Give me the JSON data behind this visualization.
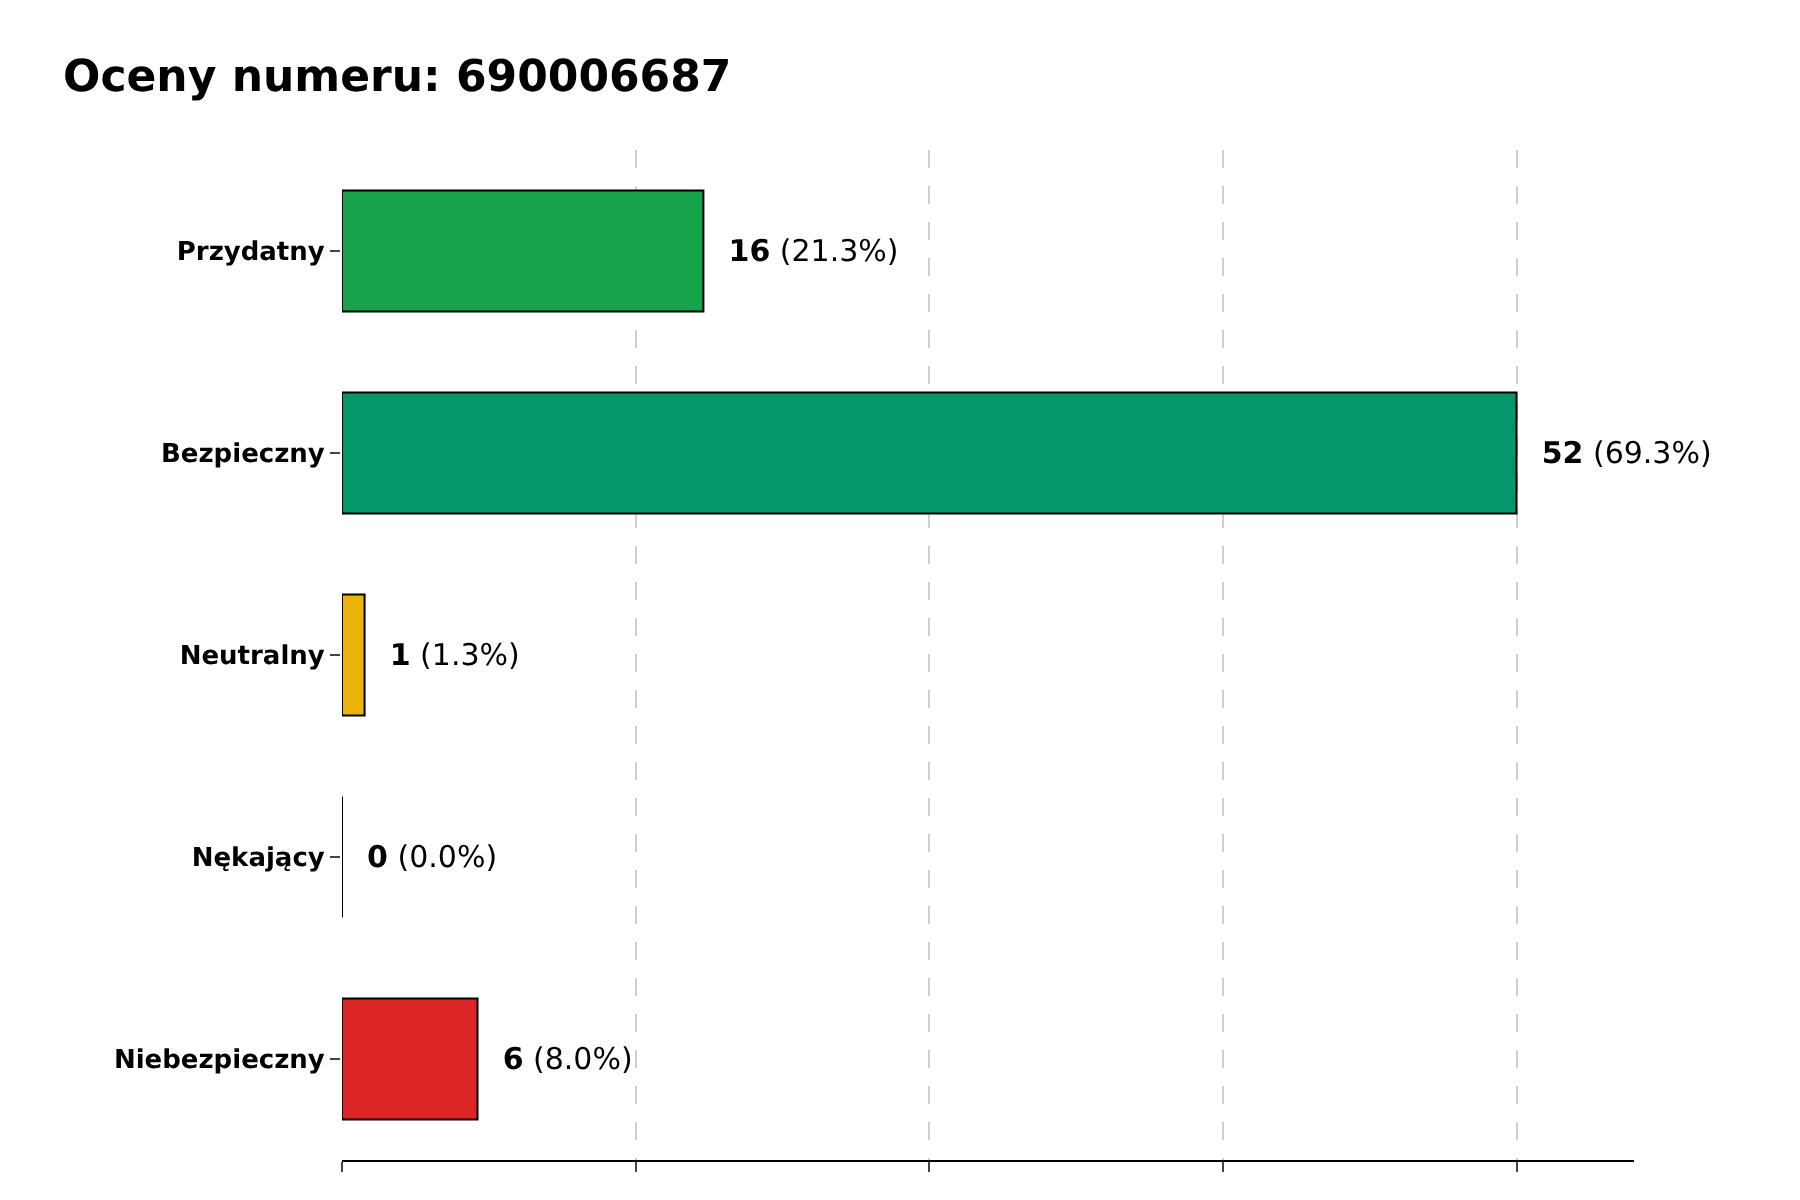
{
  "chart_data": {
    "type": "bar",
    "orientation": "horizontal",
    "title": "Oceny numeru: 690006687",
    "categories": [
      "Przydatny",
      "Bezpieczny",
      "Neutralny",
      "Nękający",
      "Niebezpieczny"
    ],
    "values": [
      16,
      52,
      1,
      0,
      6
    ],
    "colors": [
      "#16a34a",
      "#059669",
      "#eab308",
      "#000000",
      "#dc2626"
    ],
    "value_labels": [
      "16 (21.3%)",
      "52 (69.3%)",
      "1 (1.3%)",
      "0 (0.0%)",
      "6 (8.0%)"
    ],
    "xlim": [
      0,
      57.2
    ],
    "xticks": [
      {
        "value": 0,
        "label": null
      },
      {
        "value": 13,
        "label": null
      },
      {
        "value": 26,
        "label": null
      },
      {
        "value": 39,
        "label": null
      },
      {
        "value": 52,
        "label": null
      }
    ],
    "tick_labels": "y",
    "grid": "x"
  }
}
